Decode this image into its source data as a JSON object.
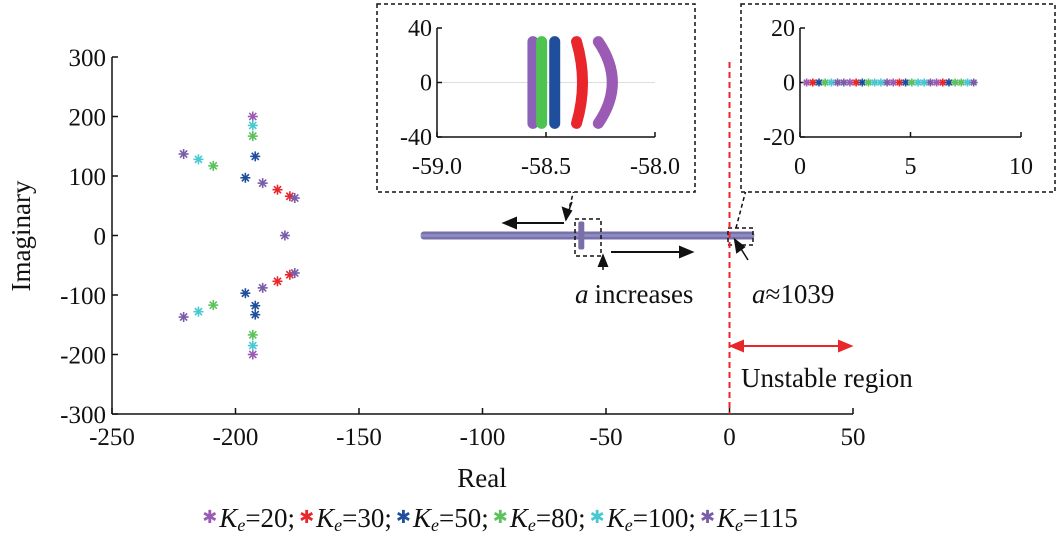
{
  "chart_data": {
    "type": "scatter",
    "xlabel": "Real",
    "ylabel": "Imaginary",
    "xlim": [
      -250,
      50
    ],
    "ylim": [
      -300,
      300
    ],
    "xticks": [
      "-250",
      "-200",
      "-150",
      "-100",
      "-50",
      "0",
      "50"
    ],
    "yticks": [
      "300",
      "200",
      "100",
      "0",
      "-100",
      "-200",
      "-300"
    ],
    "grid": false,
    "legend_position": "bottom",
    "series": [
      {
        "name": "Ke=20",
        "color": "#9b5bb5",
        "points": [
          [
            -193,
            200
          ],
          [
            -193,
            -200
          ]
        ]
      },
      {
        "name": "Ke=30",
        "color": "#e8262b",
        "points": [
          [
            -183,
            77
          ],
          [
            -183,
            -77
          ],
          [
            -178,
            66
          ],
          [
            -178,
            -66
          ]
        ]
      },
      {
        "name": "Ke=50",
        "color": "#1f4e9c",
        "points": [
          [
            -192,
            133
          ],
          [
            -192,
            -133
          ],
          [
            -196,
            97
          ],
          [
            -196,
            -97
          ],
          [
            -192,
            -118
          ]
        ]
      },
      {
        "name": "Ke=80",
        "color": "#5cc25c",
        "points": [
          [
            -193,
            167
          ],
          [
            -193,
            -167
          ],
          [
            -209,
            117
          ],
          [
            -209,
            -117
          ]
        ]
      },
      {
        "name": "Ke=100",
        "color": "#48c9d2",
        "points": [
          [
            -193,
            185
          ],
          [
            -193,
            -185
          ],
          [
            -215,
            128
          ],
          [
            -215,
            -128
          ]
        ]
      },
      {
        "name": "Ke=115",
        "color": "#7b5ca8",
        "points": [
          [
            -221,
            137
          ],
          [
            -221,
            -137
          ],
          [
            -189,
            88
          ],
          [
            -189,
            -88
          ],
          [
            -176,
            63
          ],
          [
            -176,
            -63
          ],
          [
            -180,
            0
          ]
        ]
      }
    ],
    "real_axis_cluster": {
      "x_range": [
        -125,
        10
      ],
      "y": 0,
      "color": "#7b6fa8"
    },
    "stability_boundary": {
      "x": 0,
      "color": "#e8262b"
    },
    "annotations": {
      "increases_label": "a increases",
      "critical_label": "a≈1039",
      "unstable_label": "Unstable region"
    },
    "inset_left": {
      "xlim": [
        -59.0,
        -58.0
      ],
      "ylim": [
        -40,
        40
      ],
      "xticks": [
        "-59.0",
        "-58.5",
        "-58.0"
      ],
      "yticks": [
        "40",
        "0",
        "-40"
      ],
      "arcs": [
        {
          "x": -58.56,
          "color": "#8a63b8"
        },
        {
          "x": -58.52,
          "color": "#4fc34f"
        },
        {
          "x": -58.46,
          "color": "#1f4e9c"
        },
        {
          "x": -58.36,
          "color": "#e8262b"
        },
        {
          "x": -58.26,
          "color": "#9b5bb5"
        }
      ]
    },
    "inset_right": {
      "xlim": [
        0,
        10
      ],
      "ylim": [
        -20,
        20
      ],
      "xticks": [
        "0",
        "5",
        "10"
      ],
      "yticks": [
        "20",
        "0",
        "-20"
      ],
      "cluster_x_range": [
        0.3,
        8
      ]
    }
  },
  "legend": [
    {
      "sym": "K",
      "sub": "e",
      "text": "=20;",
      "color": "#9b5bb5"
    },
    {
      "sym": "K",
      "sub": "e",
      "text": "=30;",
      "color": "#e8262b"
    },
    {
      "sym": "K",
      "sub": "e",
      "text": "=50;",
      "color": "#1f4e9c"
    },
    {
      "sym": "K",
      "sub": "e",
      "text": "=80;",
      "color": "#5cc25c"
    },
    {
      "sym": "K",
      "sub": "e",
      "text": "=100;",
      "color": "#48c9d2"
    },
    {
      "sym": "K",
      "sub": "e",
      "text": "=115",
      "color": "#7b5ca8"
    }
  ]
}
